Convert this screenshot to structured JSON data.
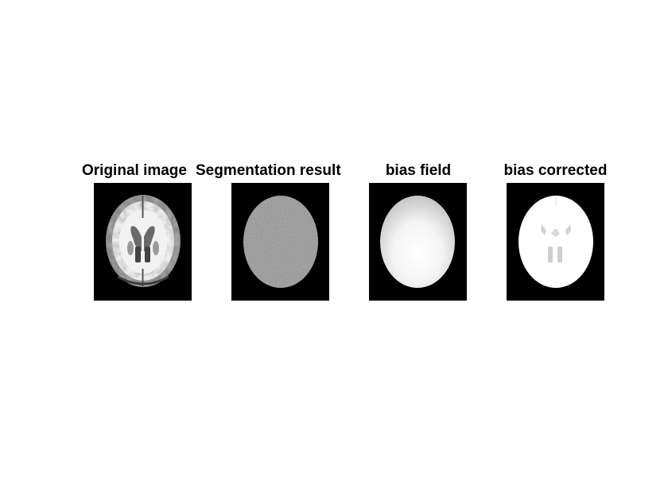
{
  "figure": {
    "panels": [
      {
        "title": "Original image",
        "content": "axial brain MRI slice"
      },
      {
        "title": "Segmentation result",
        "content": "noisy gray brain segmentation"
      },
      {
        "title": "bias field",
        "content": "smooth bias field intensity"
      },
      {
        "title": "bias corrected",
        "content": "bias corrected brain image"
      }
    ]
  }
}
